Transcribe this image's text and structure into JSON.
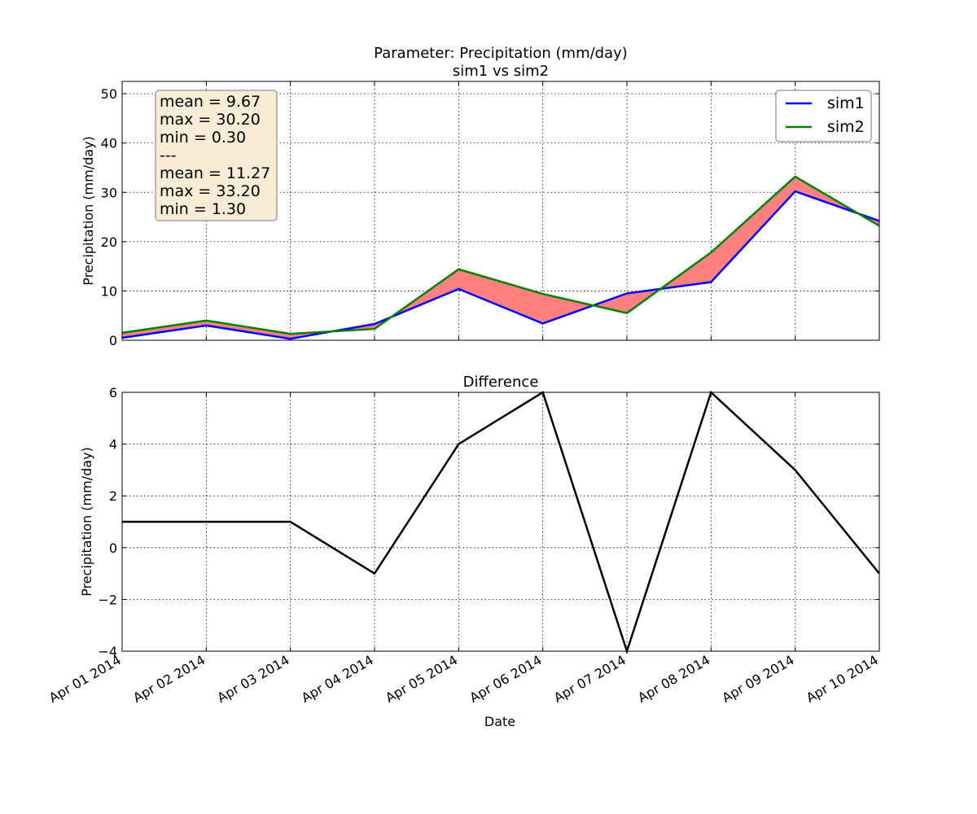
{
  "chart_data": [
    {
      "type": "line",
      "title": "Parameter: Precipitation (mm/day)",
      "subtitle": "sim1 vs sim2",
      "xlabel": "",
      "ylabel": "Precipitation (mm/day)",
      "x": [
        "Apr 01 2014",
        "Apr 02 2014",
        "Apr 03 2014",
        "Apr 04 2014",
        "Apr 05 2014",
        "Apr 06 2014",
        "Apr 07 2014",
        "Apr 08 2014",
        "Apr 09 2014",
        "Apr 10 2014"
      ],
      "ylim": [
        0,
        52.5
      ],
      "yticks": [
        0,
        10,
        20,
        30,
        40,
        50
      ],
      "grid": true,
      "legend_position": "top-right",
      "fill_between_color": "#ff8080",
      "series": [
        {
          "name": "sim1",
          "color": "#0000ff",
          "values": [
            0.5,
            3.0,
            0.3,
            3.3,
            10.4,
            3.4,
            9.5,
            11.8,
            30.2,
            24.2
          ]
        },
        {
          "name": "sim2",
          "color": "#008000",
          "values": [
            1.5,
            4.0,
            1.3,
            2.3,
            14.4,
            9.4,
            5.5,
            17.8,
            33.2,
            23.2
          ]
        }
      ],
      "stats_box": [
        "mean = 9.67",
        "max = 30.20",
        "min = 0.30",
        "---",
        "mean = 11.27",
        "max = 33.20",
        "min = 1.30"
      ],
      "stats_box_color": "#f9ecd6"
    },
    {
      "type": "line",
      "title": "Difference",
      "xlabel": "Date",
      "ylabel": "Precipitation (mm/day)",
      "x": [
        "Apr 01 2014",
        "Apr 02 2014",
        "Apr 03 2014",
        "Apr 04 2014",
        "Apr 05 2014",
        "Apr 06 2014",
        "Apr 07 2014",
        "Apr 08 2014",
        "Apr 09 2014",
        "Apr 10 2014"
      ],
      "ylim": [
        -4,
        6
      ],
      "yticks": [
        -4,
        -2,
        0,
        2,
        4,
        6
      ],
      "ytick_labels": [
        "−4",
        "−2",
        "0",
        "2",
        "4",
        "6"
      ],
      "grid": true,
      "series": [
        {
          "color": "#000000",
          "values": [
            1,
            1,
            1,
            -1,
            4,
            6,
            -4,
            6,
            3,
            -1
          ]
        }
      ]
    }
  ]
}
